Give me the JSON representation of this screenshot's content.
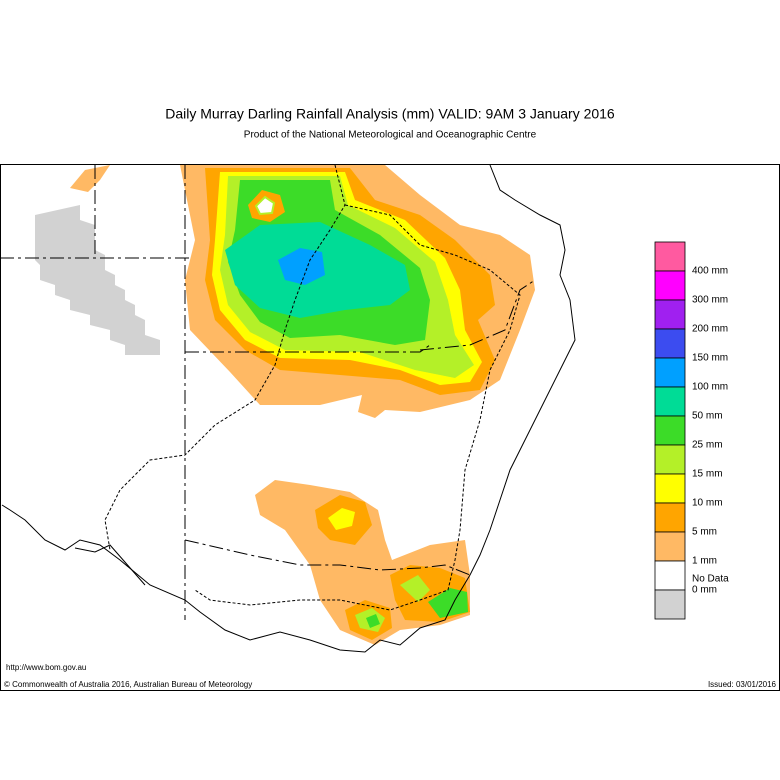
{
  "title": "Daily Murray Darling Rainfall Analysis (mm)  VALID: 9AM  3 January 2016",
  "subtitle": "Product of the National Meteorological and Oceanographic Centre",
  "legend": {
    "colors": [
      "#ff5aa0",
      "#ff00ff",
      "#a020f0",
      "#3c4cf0",
      "#00a0ff",
      "#00dc96",
      "#3cdc28",
      "#b4f028",
      "#ffff00",
      "#ffa500",
      "#ffb964",
      "#ffffff",
      "#d2d2d2"
    ],
    "labels": [
      "400 mm",
      "300 mm",
      "200 mm",
      "150 mm",
      "100 mm",
      "50 mm",
      "25 mm",
      "15 mm",
      "10 mm",
      "5 mm",
      "1 mm",
      "0 mm",
      "No Data"
    ]
  },
  "source_url": "http://www.bom.gov.au",
  "copyright": "© Commonwealth of Australia 2016, Australian Bureau of Meteorology",
  "issued": "Issued: 03/01/2016"
}
